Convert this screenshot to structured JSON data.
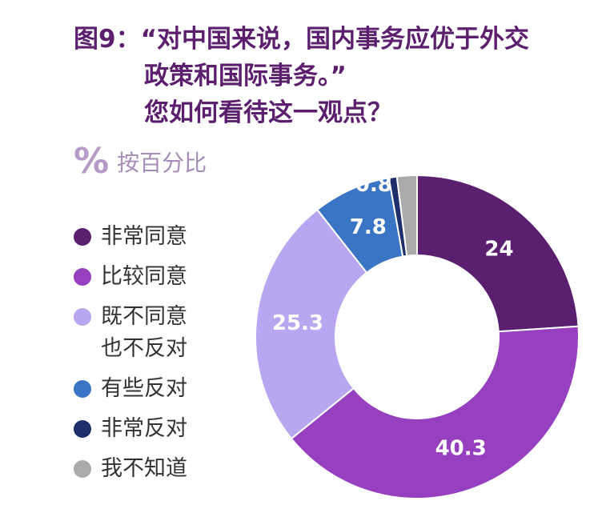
{
  "title": {
    "line1": "图9：“对中国来说，国内事务应优于外交",
    "line2": "政策和国际事务。”",
    "line3": "您如何看待这一观点？"
  },
  "unit": {
    "symbol": "%",
    "label": "按百分比"
  },
  "legend": [
    {
      "label": "非常同意",
      "label2": "",
      "color": "#5a1f6e"
    },
    {
      "label": "比较同意",
      "label2": "",
      "color": "#963fbf"
    },
    {
      "label": "既不同意",
      "label2": "也不反对",
      "color": "#b8a6f0"
    },
    {
      "label": "有些反对",
      "label2": "",
      "color": "#3a74c4"
    },
    {
      "label": "非常反对",
      "label2": "",
      "color": "#1f2f6b"
    },
    {
      "label": "我不知道",
      "label2": "",
      "color": "#aaaaaa"
    }
  ],
  "chart_data": {
    "type": "pie",
    "style": "donut",
    "categories": [
      "非常同意",
      "比较同意",
      "既不同意也不反对",
      "有些反对",
      "非常反对",
      "我不知道"
    ],
    "values": [
      24,
      40.3,
      25.3,
      7.8,
      0.8,
      2.0
    ],
    "data_labels": [
      "24",
      "40.3",
      "25.3",
      "7.8",
      "0.8",
      ""
    ],
    "colors": [
      "#5a1f6e",
      "#963fbf",
      "#b8a6f0",
      "#3a74c4",
      "#1f2f6b",
      "#aaaaaa"
    ],
    "start": "top",
    "direction": "clockwise"
  }
}
